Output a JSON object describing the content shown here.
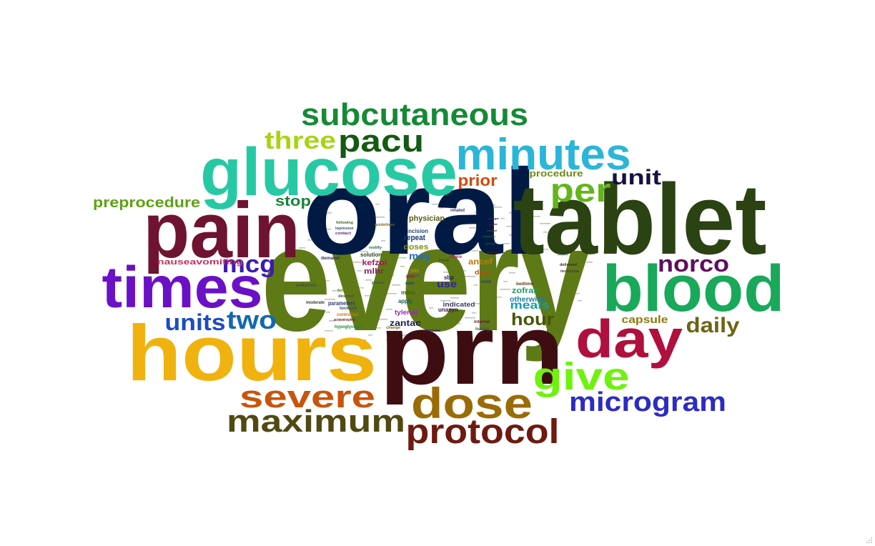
{
  "words": [
    {
      "text": "every",
      "color": "#5e7a16"
    },
    {
      "text": "oral",
      "color": "#001a44"
    },
    {
      "text": "prn",
      "color": "#3e0d12"
    },
    {
      "text": "tablet",
      "color": "#2b4212"
    },
    {
      "text": "hours",
      "color": "#f0b20e"
    },
    {
      "text": "pain",
      "color": "#6e1430"
    },
    {
      "text": "glucose",
      "color": "#27c9a4"
    },
    {
      "text": "times",
      "color": "#6a10c6"
    },
    {
      "text": "blood",
      "color": "#1aa85a"
    },
    {
      "text": "day",
      "color": "#b0103e"
    },
    {
      "text": "dose",
      "color": "#9a6c07"
    },
    {
      "text": "minutes",
      "color": "#2bb6d8"
    },
    {
      "text": "protocol",
      "color": "#6e1a10"
    },
    {
      "text": "subcutaneous",
      "color": "#158a35"
    },
    {
      "text": "maximum",
      "color": "#504a12"
    },
    {
      "text": "severe",
      "color": "#c6560e"
    },
    {
      "text": "give",
      "color": "#6ef20e"
    },
    {
      "text": "microgram",
      "color": "#2c2cc2"
    },
    {
      "text": "pacu",
      "color": "#145a12"
    },
    {
      "text": "per",
      "color": "#63b51b"
    },
    {
      "text": "three",
      "color": "#a8d412"
    },
    {
      "text": "mcg",
      "color": "#3b1bb5"
    },
    {
      "text": "two",
      "color": "#1268b0"
    },
    {
      "text": "units",
      "color": "#1c4cc2"
    },
    {
      "text": "norco",
      "color": "#5e0f5c"
    },
    {
      "text": "unit",
      "color": "#16113e"
    },
    {
      "text": "daily",
      "color": "#6b6412"
    },
    {
      "text": "hour",
      "color": "#485408"
    },
    {
      "text": "prior",
      "color": "#d04a10"
    },
    {
      "text": "preprocedure",
      "color": "#5ea212"
    },
    {
      "text": "stop",
      "color": "#16843a"
    },
    {
      "text": "meals",
      "color": "#12a0b0"
    },
    {
      "text": "capsule",
      "color": "#907a10"
    },
    {
      "text": "procedure",
      "color": "#6e8a12"
    },
    {
      "text": "nauseavomiting",
      "color": "#c0305e"
    },
    {
      "text": "zofran",
      "color": "#18a060"
    },
    {
      "text": "otherwise",
      "color": "#1c80a8"
    },
    {
      "text": "may",
      "color": "#2a6ac0"
    },
    {
      "text": "use",
      "color": "#3020a0"
    },
    {
      "text": "doses",
      "color": "#7a9010"
    },
    {
      "text": "repeat",
      "color": "#1a3c6e"
    },
    {
      "text": "physician",
      "color": "#5a5a10"
    },
    {
      "text": "kefzol",
      "color": "#a01a5a"
    },
    {
      "text": "mlhr",
      "color": "#8a2060"
    },
    {
      "text": "zantac",
      "color": "#1a1a4e"
    },
    {
      "text": "tylenol",
      "color": "#a020c0"
    },
    {
      "text": "indicated",
      "color": "#3a3a60"
    },
    {
      "text": "unasyn",
      "color": "#3a1a40"
    },
    {
      "text": "ancef",
      "color": "#c07a10"
    },
    {
      "text": "days",
      "color": "#b05010"
    },
    {
      "text": "incision",
      "color": "#204a6e"
    },
    {
      "text": "solution",
      "color": "#2a4a1a"
    },
    {
      "text": "mine",
      "color": "#406010"
    },
    {
      "text": "apply",
      "color": "#1a5a4e"
    },
    {
      "text": "sbp",
      "color": "#1a1a6e"
    },
    {
      "text": "parameters",
      "color": "#2a3a6e"
    },
    {
      "text": "lockout",
      "color": "#40406e"
    },
    {
      "text": "controlled",
      "color": "#c07a10"
    },
    {
      "text": "hypoglycemic",
      "color": "#1a8a3a"
    },
    {
      "text": "sedation",
      "color": "#4a4a4a"
    },
    {
      "text": "moderate",
      "color": "#3a3a3a"
    },
    {
      "text": "demand",
      "color": "#3a2a5e"
    },
    {
      "text": "pos",
      "color": "#c08a10"
    },
    {
      "text": "hold",
      "color": "#3a5a1a"
    },
    {
      "text": "mild",
      "color": "#3a3a5e"
    },
    {
      "text": "bedtime",
      "color": "#5a3a1a"
    },
    {
      "text": "interval",
      "color": "#5a1a3a"
    },
    {
      "text": "loading",
      "color": "#3a5a5a"
    },
    {
      "text": "acetaminophen",
      "color": "#7a1a1a"
    },
    {
      "text": "following",
      "color": "#4a6a1a"
    },
    {
      "text": "lopressor",
      "color": "#1a5a6a"
    },
    {
      "text": "contact",
      "color": "#6a1a6a"
    },
    {
      "text": "notify",
      "color": "#1a6a3a"
    },
    {
      "text": "guidelines",
      "color": "#7a6a1a"
    },
    {
      "text": "inhaled",
      "color": "#3a3a7a"
    },
    {
      "text": "change",
      "color": "#7a5a1a"
    },
    {
      "text": "increase",
      "color": "#3a1a5a"
    },
    {
      "text": "please",
      "color": "#6a3a7a"
    },
    {
      "text": "delivered",
      "color": "#2a2a2a"
    },
    {
      "text": "colace",
      "color": "#b01a6a"
    },
    {
      "text": "pulse",
      "color": "#3a5a3a"
    },
    {
      "text": "directed",
      "color": "#5a4a2a"
    },
    {
      "text": "follow",
      "color": "#6a7a1a"
    },
    {
      "text": "limit",
      "color": "#b01a1a"
    },
    {
      "text": "mist",
      "color": "#1a3a7a"
    },
    {
      "text": "incisiona",
      "color": "#4a3a3a"
    },
    {
      "text": "patient",
      "color": "#5a1a1a"
    },
    {
      "text": "pump",
      "color": "#3a4a1a"
    },
    {
      "text": "route",
      "color": "#4a1a4a"
    },
    {
      "text": "every",
      "color": "#2a6a4a"
    },
    {
      "text": "renal",
      "color": "#6a4a2a"
    },
    {
      "text": "range",
      "color": "#2a2a6a"
    }
  ]
}
